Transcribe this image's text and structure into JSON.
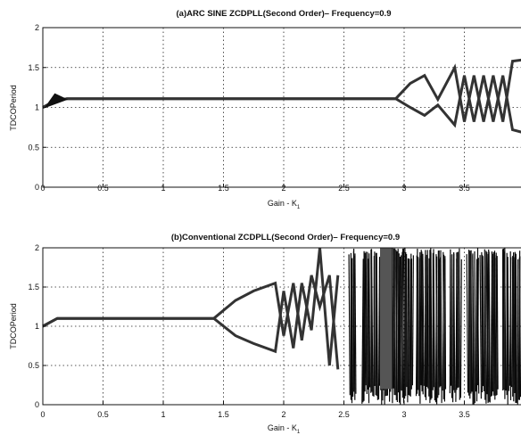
{
  "chart_data": [
    {
      "type": "line",
      "title": "(a)ARC SINE ZCDPLL(Second Order)– Frequency=0.9",
      "xlabel": "Gain - K",
      "xlabel_sub": "1",
      "ylabel": "TDCOPeriod",
      "xlim": [
        0,
        4.0
      ],
      "ylim": [
        0,
        2
      ],
      "xticks": [
        0,
        0.5,
        1,
        1.5,
        2,
        2.5,
        3,
        3.5
      ],
      "xtick_labels": [
        "0",
        "0.5",
        "1",
        "1.5",
        "2",
        "2.5",
        "3",
        "3.5"
      ],
      "yticks": [
        0,
        0.5,
        1,
        1.5,
        2
      ],
      "ytick_labels": [
        "0",
        "0.5",
        "1",
        "1.5",
        "2"
      ],
      "grid": true,
      "series": [
        {
          "values": [
            [
              0,
              1.0
            ],
            [
              0.1,
              1.08
            ],
            [
              0.2,
              1.11
            ],
            [
              2.93,
              1.11
            ],
            [
              3.05,
              1.0
            ],
            [
              3.17,
              0.9
            ],
            [
              3.28,
              1.03
            ],
            [
              3.42,
              0.78
            ],
            [
              3.5,
              1.4
            ],
            [
              3.58,
              0.82
            ],
            [
              3.66,
              1.4
            ],
            [
              3.74,
              0.82
            ],
            [
              3.82,
              1.4
            ],
            [
              3.9,
              0.72
            ],
            [
              4.0,
              0.68
            ]
          ]
        },
        {
          "values": [
            [
              0,
              1.0
            ],
            [
              0.1,
              1.08
            ],
            [
              0.2,
              1.11
            ],
            [
              2.93,
              1.11
            ],
            [
              3.05,
              1.3
            ],
            [
              3.17,
              1.4
            ],
            [
              3.28,
              1.1
            ],
            [
              3.42,
              1.5
            ],
            [
              3.5,
              0.82
            ],
            [
              3.58,
              1.4
            ],
            [
              3.66,
              0.82
            ],
            [
              3.74,
              1.4
            ],
            [
              3.82,
              0.82
            ],
            [
              3.9,
              1.58
            ],
            [
              4.0,
              1.6
            ]
          ]
        }
      ]
    },
    {
      "type": "line",
      "title": "(b)Conventional ZCDPLL(Second Order)– Frequency=0.9",
      "xlabel": "Gain - K",
      "xlabel_sub": "1",
      "ylabel": "TDCOPeriod",
      "xlim": [
        0,
        4.0
      ],
      "ylim": [
        0,
        2
      ],
      "xticks": [
        0,
        0.5,
        1,
        1.5,
        2,
        2.5,
        3,
        3.5
      ],
      "xtick_labels": [
        "0",
        "0.5",
        "1",
        "1.5",
        "2",
        "2.5",
        "3",
        "3.5"
      ],
      "yticks": [
        0,
        0.5,
        1,
        1.5,
        2
      ],
      "ytick_labels": [
        "0",
        "0.5",
        "1",
        "1.5",
        "2"
      ],
      "grid": true,
      "series": [
        {
          "values": [
            [
              0,
              1.0
            ],
            [
              0.12,
              1.1
            ],
            [
              1.42,
              1.1
            ],
            [
              1.6,
              1.33
            ],
            [
              1.75,
              1.45
            ],
            [
              1.93,
              1.55
            ],
            [
              2.0,
              0.88
            ],
            [
              2.08,
              1.55
            ],
            [
              2.15,
              0.82
            ],
            [
              2.23,
              1.65
            ],
            [
              2.3,
              1.25
            ],
            [
              2.38,
              1.65
            ],
            [
              2.45,
              0.45
            ]
          ]
        },
        {
          "values": [
            [
              0,
              1.0
            ],
            [
              0.12,
              1.1
            ],
            [
              1.42,
              1.1
            ],
            [
              1.6,
              0.88
            ],
            [
              1.75,
              0.78
            ],
            [
              1.93,
              0.68
            ],
            [
              2.0,
              1.45
            ],
            [
              2.08,
              0.72
            ],
            [
              2.15,
              1.55
            ],
            [
              2.23,
              0.95
            ],
            [
              2.3,
              2.0
            ],
            [
              2.38,
              0.5
            ],
            [
              2.45,
              1.65
            ]
          ]
        }
      ],
      "chaotic_bands": [
        [
          2.55,
          2.6
        ],
        [
          2.65,
          2.98
        ],
        [
          2.98,
          3.07
        ],
        [
          3.1,
          3.35
        ],
        [
          3.38,
          3.47
        ],
        [
          3.53,
          3.62
        ],
        [
          3.64,
          3.78
        ],
        [
          3.82,
          3.97
        ]
      ]
    }
  ]
}
